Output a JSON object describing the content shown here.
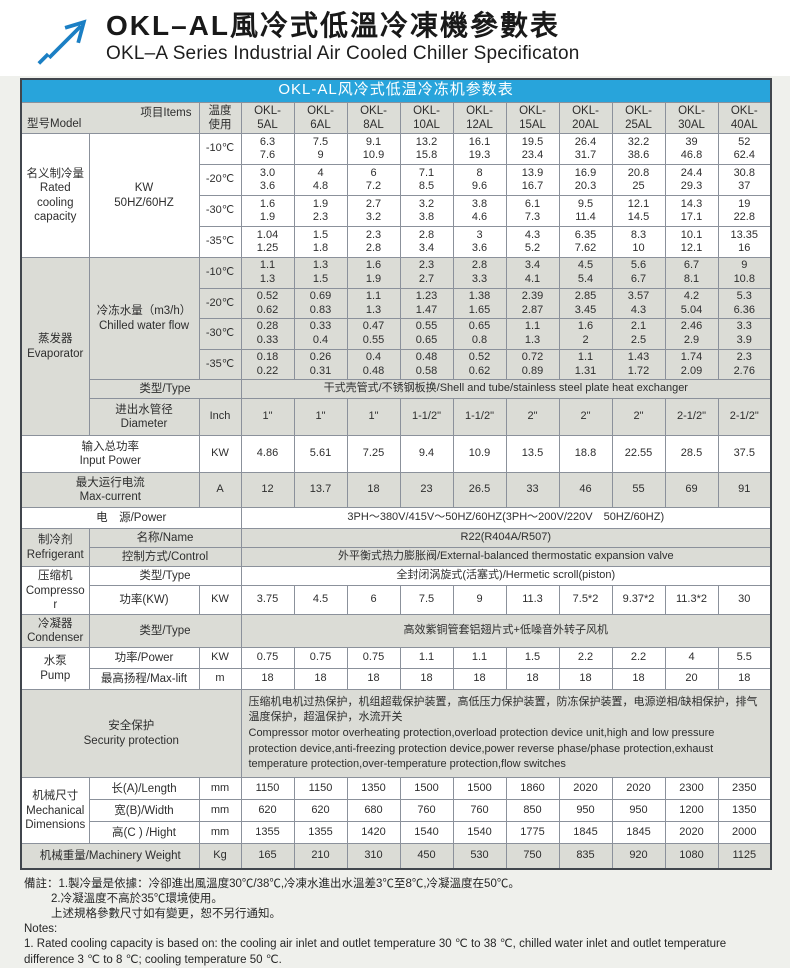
{
  "header": {
    "title_zh": "OKL–AL風冷式低溫冷凍機參數表",
    "title_en": "OKL–A Series Industrial Air Cooled Chiller Specificaton",
    "logo_icon": "arrow-up-right-icon"
  },
  "colors": {
    "accent_blue": "#28a4db",
    "logo_blue": "#1b7fc4",
    "shade_gray": "#dbdcd6",
    "border_gray": "#8b919b"
  },
  "table": {
    "caption": "OKL-AL风冷式低温冷冻机参数表",
    "corner_model": "型号Model",
    "corner_items": "项目Items",
    "temp_label": "温度\n使用",
    "models": [
      "OKL-5AL",
      "OKL-6AL",
      "OKL-8AL",
      "OKL-10AL",
      "OKL-12AL",
      "OKL-15AL",
      "OKL-20AL",
      "OKL-25AL",
      "OKL-30AL",
      "OKL-40AL"
    ]
  },
  "sections": [
    {
      "name": "rated",
      "shade": false,
      "group": "名义制冷量\nRated\ncooling\ncapacity",
      "item": "KW\n50HZ/60HZ",
      "tempRows": [
        {
          "temp": "-10℃",
          "values": [
            [
              "6.3",
              "7.6"
            ],
            [
              "7.5",
              "9"
            ],
            [
              "9.1",
              "10.9"
            ],
            [
              "13.2",
              "15.8"
            ],
            [
              "16.1",
              "19.3"
            ],
            [
              "19.5",
              "23.4"
            ],
            [
              "26.4",
              "31.7"
            ],
            [
              "32.2",
              "38.6"
            ],
            [
              "39",
              "46.8"
            ],
            [
              "52",
              "62.4"
            ]
          ]
        },
        {
          "temp": "-20℃",
          "values": [
            [
              "3.0",
              "3.6"
            ],
            [
              "4",
              "4.8"
            ],
            [
              "6",
              "7.2"
            ],
            [
              "7.1",
              "8.5"
            ],
            [
              "8",
              "9.6"
            ],
            [
              "13.9",
              "16.7"
            ],
            [
              "16.9",
              "20.3"
            ],
            [
              "20.8",
              "25"
            ],
            [
              "24.4",
              "29.3"
            ],
            [
              "30.8",
              "37"
            ]
          ]
        },
        {
          "temp": "-30℃",
          "values": [
            [
              "1.6",
              "1.9"
            ],
            [
              "1.9",
              "2.3"
            ],
            [
              "2.7",
              "3.2"
            ],
            [
              "3.2",
              "3.8"
            ],
            [
              "3.8",
              "4.6"
            ],
            [
              "6.1",
              "7.3"
            ],
            [
              "9.5",
              "11.4"
            ],
            [
              "12.1",
              "14.5"
            ],
            [
              "14.3",
              "17.1"
            ],
            [
              "19",
              "22.8"
            ]
          ]
        },
        {
          "temp": "-35℃",
          "values": [
            [
              "1.04",
              "1.25"
            ],
            [
              "1.5",
              "1.8"
            ],
            [
              "2.3",
              "2.8"
            ],
            [
              "2.8",
              "3.4"
            ],
            [
              "3",
              "3.6"
            ],
            [
              "4.3",
              "5.2"
            ],
            [
              "6.35",
              "7.62"
            ],
            [
              "8.3",
              "10"
            ],
            [
              "10.1",
              "12.1"
            ],
            [
              "13.35",
              "16"
            ]
          ]
        }
      ],
      "rows": []
    },
    {
      "name": "evaporator",
      "shade": true,
      "group": "蒸发器\nEvaporator",
      "item": "冷冻水量（m3/h）\nChilled water flow",
      "tempRows": [
        {
          "temp": "-10℃",
          "values": [
            [
              "1.1",
              "1.3"
            ],
            [
              "1.3",
              "1.5"
            ],
            [
              "1.6",
              "1.9"
            ],
            [
              "2.3",
              "2.7"
            ],
            [
              "2.8",
              "3.3"
            ],
            [
              "3.4",
              "4.1"
            ],
            [
              "4.5",
              "5.4"
            ],
            [
              "5.6",
              "6.7"
            ],
            [
              "6.7",
              "8.1"
            ],
            [
              "9",
              "10.8"
            ]
          ]
        },
        {
          "temp": "-20℃",
          "values": [
            [
              "0.52",
              "0.62"
            ],
            [
              "0.69",
              "0.83"
            ],
            [
              "1.1",
              "1.3"
            ],
            [
              "1.23",
              "1.47"
            ],
            [
              "1.38",
              "1.65"
            ],
            [
              "2.39",
              "2.87"
            ],
            [
              "2.85",
              "3.45"
            ],
            [
              "3.57",
              "4.3"
            ],
            [
              "4.2",
              "5.04"
            ],
            [
              "5.3",
              "6.36"
            ]
          ]
        },
        {
          "temp": "-30℃",
          "values": [
            [
              "0.28",
              "0.33"
            ],
            [
              "0.33",
              "0.4"
            ],
            [
              "0.47",
              "0.55"
            ],
            [
              "0.55",
              "0.65"
            ],
            [
              "0.65",
              "0.8"
            ],
            [
              "1.1",
              "1.3"
            ],
            [
              "1.6",
              "2"
            ],
            [
              "2.1",
              "2.5"
            ],
            [
              "2.46",
              "2.9"
            ],
            [
              "3.3",
              "3.9"
            ]
          ]
        },
        {
          "temp": "-35℃",
          "values": [
            [
              "0.18",
              "0.22"
            ],
            [
              "0.26",
              "0.31"
            ],
            [
              "0.4",
              "0.48"
            ],
            [
              "0.48",
              "0.58"
            ],
            [
              "0.52",
              "0.62"
            ],
            [
              "0.72",
              "0.89"
            ],
            [
              "1.1",
              "1.31"
            ],
            [
              "1.43",
              "1.72"
            ],
            [
              "1.74",
              "2.09"
            ],
            [
              "2.3",
              "2.76"
            ]
          ]
        }
      ],
      "rows": [
        {
          "label": "类型/Type",
          "labelCols": 2,
          "wide": "干式壳管式/不锈钢板换/Shell and tube/stainless steel plate heat exchanger"
        },
        {
          "label": "进出水管径\nDiameter",
          "labelCols": 1,
          "unit": "Inch",
          "values": [
            "1\"",
            "1\"",
            "1\"",
            "1-1/2\"",
            "1-1/2\"",
            "2\"",
            "2\"",
            "2\"",
            "2-1/2\"",
            "2-1/2\""
          ]
        }
      ]
    },
    {
      "name": "input-power",
      "shade": false,
      "group": null,
      "rows": [
        {
          "label": "输入总功率\nInput Power",
          "labelCols": 2,
          "unit": "KW",
          "values": [
            "4.86",
            "5.61",
            "7.25",
            "9.4",
            "10.9",
            "13.5",
            "18.8",
            "22.55",
            "28.5",
            "37.5"
          ]
        }
      ]
    },
    {
      "name": "max-current",
      "shade": true,
      "group": null,
      "rows": [
        {
          "label": "最大运行电流\nMax-current",
          "labelCols": 2,
          "unit": "A",
          "values": [
            "12",
            "13.7",
            "18",
            "23",
            "26.5",
            "33",
            "46",
            "55",
            "69",
            "91"
          ]
        }
      ]
    },
    {
      "name": "power",
      "shade": false,
      "group": null,
      "rows": [
        {
          "label": "电　源/Power",
          "labelCols": 3,
          "wide": "3PH～380V/415V～50HZ/60HZ(3PH～200V/220V　50HZ/60HZ)"
        }
      ]
    },
    {
      "name": "refrigerant",
      "shade": true,
      "group": "制冷剂\nRefrigerant",
      "rows": [
        {
          "label": "名称/Name",
          "labelCols": 2,
          "wide": "R22(R404A/R507)"
        },
        {
          "label": "控制方式/Control",
          "labelCols": 2,
          "wide": "外平衡式热力膨胀阀/External-balanced thermostatic expansion valve"
        }
      ]
    },
    {
      "name": "compressor",
      "shade": false,
      "group": "压缩机\nCompressor",
      "rows": [
        {
          "label": "类型/Type",
          "labelCols": 2,
          "wide": "全封闭涡旋式(活塞式)/Hermetic scroll(piston)"
        },
        {
          "label": "功率(KW)",
          "labelCols": 1,
          "unit": "KW",
          "values": [
            "3.75",
            "4.5",
            "6",
            "7.5",
            "9",
            "11.3",
            "7.5*2",
            "9.37*2",
            "11.3*2",
            "30"
          ]
        }
      ]
    },
    {
      "name": "condenser",
      "shade": true,
      "group": "冷凝器\nCondenser",
      "rows": [
        {
          "label": "类型/Type",
          "labelCols": 2,
          "wide": "高效紫铜管套铝翅片式+低噪音外转子风机"
        }
      ]
    },
    {
      "name": "pump",
      "shade": false,
      "group": "水泵\nPump",
      "rows": [
        {
          "label": "功率/Power",
          "labelCols": 1,
          "unit": "KW",
          "values": [
            "0.75",
            "0.75",
            "0.75",
            "1.1",
            "1.1",
            "1.5",
            "2.2",
            "2.2",
            "4",
            "5.5"
          ]
        },
        {
          "label": "最高扬程/Max-lift",
          "labelCols": 1,
          "unit": "m",
          "values": [
            "18",
            "18",
            "18",
            "18",
            "18",
            "18",
            "18",
            "18",
            "20",
            "18"
          ]
        }
      ]
    },
    {
      "name": "security",
      "shade": true,
      "group": null,
      "rows": [
        {
          "label": "安全保护\nSecurity protection",
          "labelCols": 3,
          "align": "left",
          "wide": "压缩机电机过热保护，机组超载保护装置，高低压力保护装置，防冻保护装置，电源逆相/缺相保护，排气温度保护，超温保护，水流开关\nCompressor motor overheating protection,overload protection device unit,high and low pressure protection device,anti-freezing protection device,power reverse phase/phase protection,exhaust temperature protection,over-temperature protection,flow switches"
        }
      ]
    },
    {
      "name": "mechanical",
      "shade": false,
      "group": "机械尺寸\nMechanical\nDimensions",
      "rows": [
        {
          "label": "长(A)/Length",
          "labelCols": 1,
          "unit": "mm",
          "values": [
            "1150",
            "1150",
            "1350",
            "1500",
            "1500",
            "1860",
            "2020",
            "2020",
            "2300",
            "2350"
          ]
        },
        {
          "label": "宽(B)/Width",
          "labelCols": 1,
          "unit": "mm",
          "values": [
            "620",
            "620",
            "680",
            "760",
            "760",
            "850",
            "950",
            "950",
            "1200",
            "1350"
          ]
        },
        {
          "label": "高(C ) /Hight",
          "labelCols": 1,
          "unit": "mm",
          "values": [
            "1355",
            "1355",
            "1420",
            "1540",
            "1540",
            "1775",
            "1845",
            "1845",
            "2020",
            "2000"
          ]
        }
      ]
    },
    {
      "name": "weight",
      "shade": true,
      "group": null,
      "rows": [
        {
          "label": "机械重量/Machinery Weight",
          "labelCols": 2,
          "unit": "Kg",
          "values": [
            "165",
            "210",
            "310",
            "450",
            "530",
            "750",
            "835",
            "920",
            "1080",
            "1125"
          ]
        }
      ]
    }
  ],
  "notes": {
    "lines": [
      "備註：1.製冷量是依據：冷卻進出風溫度30℃/38℃,冷凍水進出水溫差3℃至8℃,冷凝溫度在50℃。",
      "2.冷凝溫度不高於35℃環境使用。",
      "上述規格參數尺寸如有變更，恕不另行通知。",
      "Notes:",
      "1. Rated cooling capacity is based on: the cooling air inlet and outlet temperature 30 ℃ to 38 ℃, chilled water inlet and outlet temperature difference 3 ℃ to 8 ℃; cooling temperature 50 ℃."
    ]
  }
}
